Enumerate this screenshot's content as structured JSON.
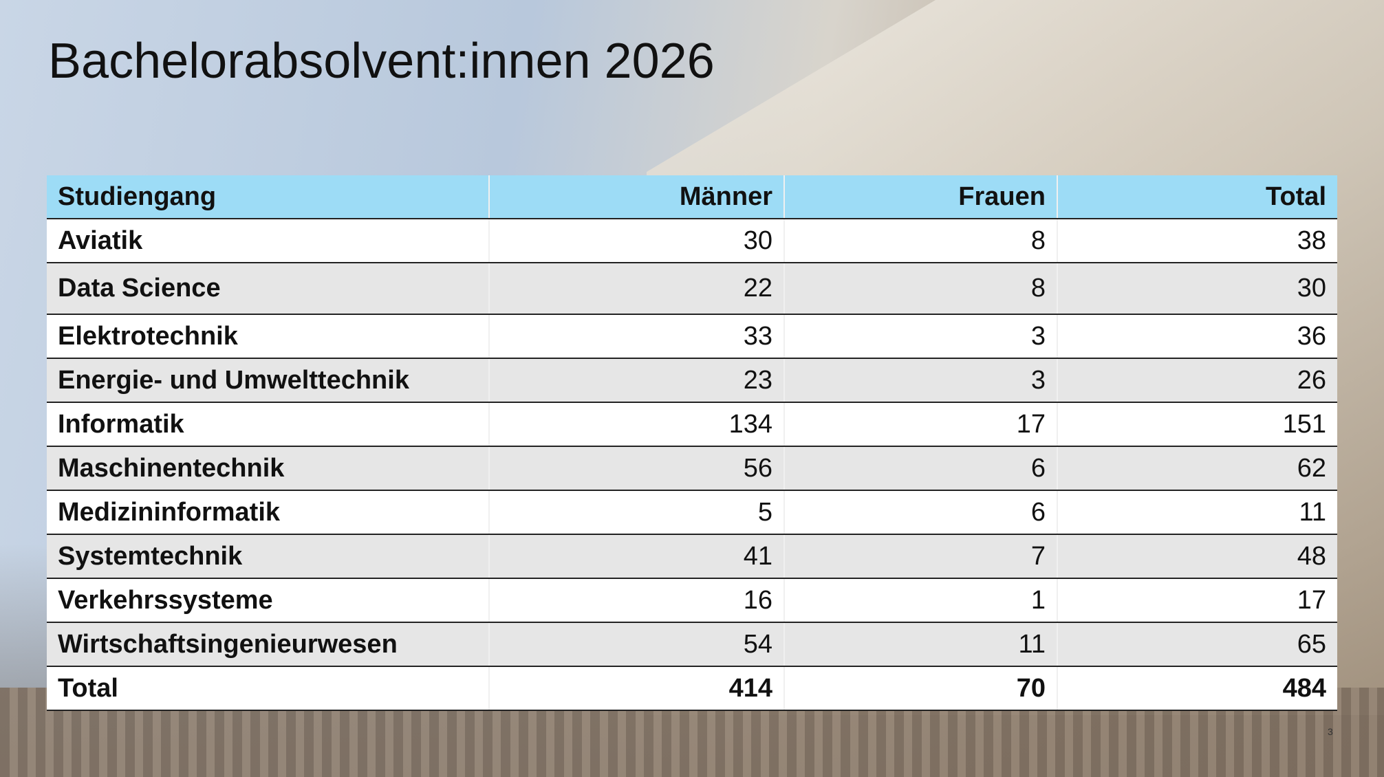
{
  "header": {
    "title": "Bachelorabsolvent:innen 2026"
  },
  "table": {
    "columns": [
      "Studiengang",
      "Männer",
      "Frauen",
      "Total"
    ],
    "rows": [
      [
        "Aviatik",
        30,
        8,
        38
      ],
      [
        "Data Science",
        22,
        8,
        30
      ],
      [
        "Elektrotechnik",
        33,
        3,
        36
      ],
      [
        "Energie- und Umwelttechnik",
        23,
        3,
        26
      ],
      [
        "Informatik",
        134,
        17,
        151
      ],
      [
        "Maschinentechnik",
        56,
        6,
        62
      ],
      [
        "Medizininformatik",
        5,
        6,
        11
      ],
      [
        "Systemtechnik",
        41,
        7,
        48
      ],
      [
        "Verkehrssysteme",
        16,
        1,
        17
      ],
      [
        "Wirtschaftsingenieurwesen",
        54,
        11,
        65
      ]
    ],
    "total": [
      "Total",
      414,
      70,
      484
    ]
  },
  "footer": {
    "page_number": 3
  }
}
